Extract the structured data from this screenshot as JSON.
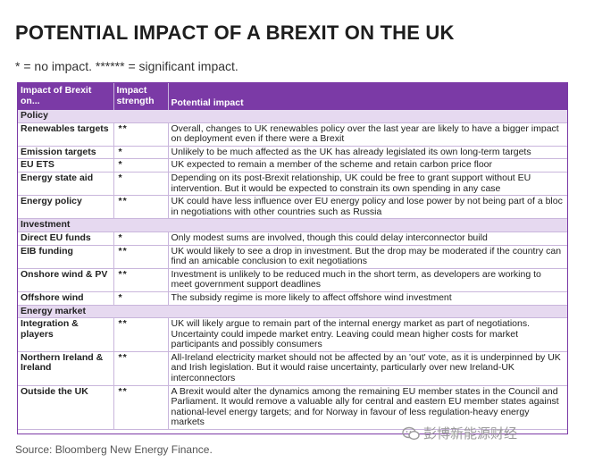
{
  "title": "POTENTIAL IMPACT OF A BREXIT ON THE UK",
  "subtitle": "* = no impact. ****** = significant impact.",
  "table": {
    "headers": [
      "Impact of Brexit on...",
      "Impact strength",
      "Potential impact"
    ],
    "sections": [
      {
        "name": "Policy",
        "rows": [
          {
            "item": "Renewables targets",
            "strength": "**",
            "impact": "Overall, changes to UK renewables policy over the last year are likely to have a bigger impact on deployment even if there were a Brexit"
          },
          {
            "item": "Emission targets",
            "strength": "*",
            "impact": "Unlikely to be much affected as the UK has already legislated its own long-term targets"
          },
          {
            "item": "EU ETS",
            "strength": "*",
            "impact": "UK expected to remain a member of the scheme and retain carbon price floor"
          },
          {
            "item": "Energy state aid",
            "strength": "*",
            "impact": "Depending on its post-Brexit relationship, UK could be free to grant support without EU intervention. But it would be expected to constrain its own spending in any case"
          },
          {
            "item": "Energy policy",
            "strength": "**",
            "impact": "UK could have less influence over EU energy policy and lose power by not being part of a bloc in negotiations with other countries such as Russia"
          }
        ]
      },
      {
        "name": "Investment",
        "rows": [
          {
            "item": "Direct EU funds",
            "strength": "*",
            "impact": "Only modest sums are involved, though this could delay interconnector build"
          },
          {
            "item": "EIB funding",
            "strength": "**",
            "impact": "UK would likely to see a drop in investment. But the drop may be moderated if the country can find an amicable conclusion to exit negotiations"
          },
          {
            "item": "Onshore wind & PV",
            "strength": "**",
            "impact": "Investment is unlikely to be reduced much in the short term, as developers are working to meet government support deadlines"
          },
          {
            "item": "Offshore wind",
            "strength": "*",
            "impact": "The subsidy regime is more likely to affect offshore wind investment"
          }
        ]
      },
      {
        "name": "Energy market",
        "rows": [
          {
            "item": "Integration & players",
            "strength": "**",
            "impact": "UK will likely argue to remain part of the internal energy market as part of negotiations. Uncertainty could impede market entry. Leaving could mean higher costs for market participants and possibly consumers"
          },
          {
            "item": "Northern Ireland & Ireland",
            "strength": "**",
            "impact": "All-Ireland electricity market should not be affected by an 'out' vote, as it is underpinned by UK and Irish legislation. But it would raise uncertainty, particularly over new Ireland-UK interconnectors"
          },
          {
            "item": "Outside the UK",
            "strength": "**",
            "impact": "A Brexit would alter the dynamics among the remaining EU member states in the Council and Parliament. It would remove a valuable ally for central and eastern EU member states against national-level energy targets; and for Norway in favour of less regulation-heavy energy markets"
          }
        ]
      }
    ]
  },
  "source": "Source:  Bloomberg New Energy Finance.",
  "watermark": "彭博新能源财经",
  "colors": {
    "header": "#7b3aa6",
    "section": "#e6d9f0",
    "border": "#c9b6dc"
  }
}
